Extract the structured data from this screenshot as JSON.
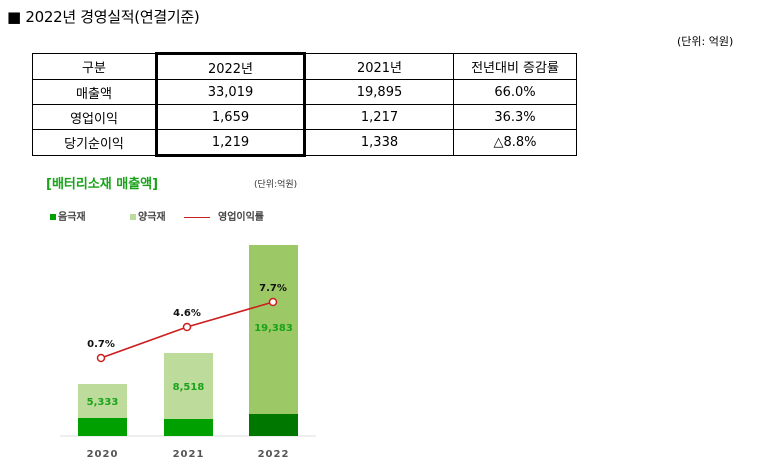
{
  "header": {
    "title": "■ 2022년 경영실적(연결기준)",
    "unit": "(단위: 억원)"
  },
  "table": {
    "headers": [
      "구분",
      "2022년",
      "2021년",
      "전년대비 증감률"
    ],
    "rows": [
      [
        "매출액",
        "33,019",
        "19,895",
        "66.0%"
      ],
      [
        "영업이익",
        "1,659",
        "1,217",
        "36.3%"
      ],
      [
        "당기순이익",
        "1,219",
        "1,338",
        "△8.8%"
      ]
    ]
  },
  "chart_data": {
    "type": "bar",
    "title": "[배터리소재 매출액]",
    "unit": "(단위:억원)",
    "categories": [
      "2020",
      "2021",
      "2022"
    ],
    "series": [
      {
        "name": "음극재",
        "values": [
          null,
          null,
          null
        ],
        "color": "#00a000"
      },
      {
        "name": "양극재",
        "values": [
          5333,
          8518,
          19383
        ],
        "labels": [
          "5,333",
          "8,518",
          "19,383"
        ],
        "color": "#bddc9c"
      },
      {
        "name": "영업이익률",
        "type": "line",
        "values": [
          0.7,
          4.6,
          7.7
        ],
        "labels": [
          "0.7%",
          "4.6%",
          "7.7%"
        ],
        "color": "#cc1f1f"
      }
    ],
    "stacked": true,
    "legend": "top",
    "grid": false
  }
}
